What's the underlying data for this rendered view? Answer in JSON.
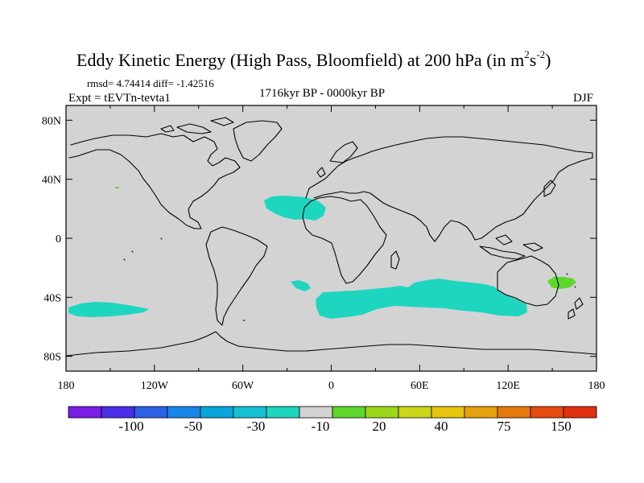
{
  "chart_data": {
    "type": "heatmap",
    "title_main": "Eddy Kinetic Energy (High Pass, Bloomfield) at 200 hPa (in m",
    "title_sup1": "2",
    "title_mid": "s",
    "title_sup2": "-2",
    "title_end": ")",
    "stats": "rmsd= 4.74414 diff= -1.42516",
    "experiment": "Expt = tEVTn-tevta1",
    "period": "1716kyr BP - 0000kyr BP",
    "season": "DJF",
    "x_ticks": [
      "180",
      "120W",
      "60W",
      "0",
      "60E",
      "120E",
      "180"
    ],
    "y_ticks": [
      "80N",
      "40N",
      "0",
      "40S",
      "80S"
    ],
    "xlim": [
      -180,
      180
    ],
    "ylim": [
      -90,
      90
    ],
    "land_color": "#000000",
    "background_color": "#d3d3d3",
    "colorbar": {
      "labels": [
        "-100",
        "-50",
        "-30",
        "-10",
        "20",
        "40",
        "75",
        "150"
      ],
      "colors": [
        "#7b1ee6",
        "#4a2ee8",
        "#2d5fe6",
        "#1887e8",
        "#0aa4dc",
        "#14c1d3",
        "#1ed6c0",
        "#d3d3d3",
        "#5ed62b",
        "#9ed61a",
        "#cbd618",
        "#e6c60e",
        "#e6a20e",
        "#e6790e",
        "#e64a0e",
        "#e0300e"
      ]
    },
    "anomaly_regions": [
      {
        "name": "north-atlantic-subtropics",
        "value": -10,
        "color": "#1ed6c0"
      },
      {
        "name": "south-atlantic-patch",
        "value": -10,
        "color": "#1ed6c0"
      },
      {
        "name": "southern-ocean-band",
        "value": -10,
        "color": "#1ed6c0"
      },
      {
        "name": "south-pacific-patch",
        "value": -10,
        "color": "#1ed6c0"
      },
      {
        "name": "tasman-sea-patch",
        "value": 20,
        "color": "#5ed62b"
      },
      {
        "name": "north-pacific-dot",
        "value": 20,
        "color": "#5ed62b"
      }
    ]
  }
}
